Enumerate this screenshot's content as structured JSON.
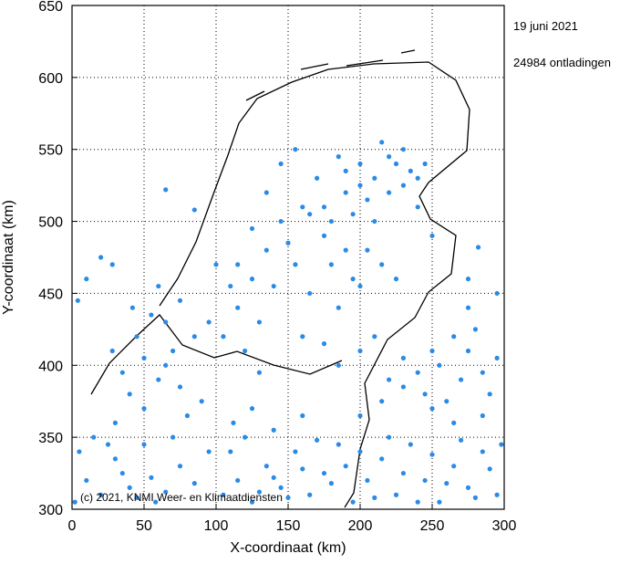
{
  "chart_data": {
    "type": "scatter",
    "date": "19 juni 2021",
    "count_label": "24984 ontladingen",
    "copyright": "(c) 2021, KNMI Weer- en Klimaatdiensten",
    "xlabel": "X-coordinaat (km)",
    "ylabel": "Y-coordinaat (km)",
    "xlim": [
      0,
      300
    ],
    "ylim": [
      300,
      650
    ],
    "xticks": [
      0,
      50,
      100,
      150,
      200,
      250,
      300
    ],
    "yticks": [
      300,
      350,
      400,
      450,
      500,
      550,
      600,
      650
    ],
    "grid": true,
    "color": "#2a8be6",
    "x": [
      105,
      115,
      125,
      135,
      145,
      155,
      165,
      175,
      185,
      195,
      205,
      215,
      225,
      235,
      245,
      255,
      265,
      275,
      285,
      295,
      110,
      120,
      130,
      140,
      150,
      160,
      170,
      180,
      190,
      200,
      210,
      220,
      230,
      240,
      250,
      260,
      270,
      280,
      290,
      298,
      112,
      125,
      140,
      160,
      200,
      215,
      230,
      250,
      265,
      285,
      2,
      10,
      20,
      30,
      40,
      50,
      58,
      5,
      15,
      35,
      45,
      25,
      55,
      65,
      75,
      85,
      95,
      70,
      30,
      40,
      50,
      60,
      70,
      45,
      55,
      65,
      75,
      35,
      80,
      90,
      85,
      65,
      50,
      28,
      42,
      75,
      60,
      95,
      105,
      115,
      125,
      135,
      145,
      155,
      165,
      175,
      185,
      120,
      130,
      140,
      150,
      160,
      170,
      180,
      110,
      100,
      125,
      135,
      145,
      155,
      165,
      190,
      195,
      175,
      185,
      160,
      130,
      115,
      180,
      190,
      200,
      210,
      220,
      230,
      240,
      185,
      195,
      205,
      215,
      225,
      235,
      200,
      210,
      175,
      190,
      220,
      230,
      240,
      245,
      205,
      215,
      225,
      200,
      245,
      255,
      265,
      275,
      285,
      295,
      270,
      280,
      290,
      260,
      250,
      275,
      240,
      230,
      220,
      210,
      200,
      10,
      20,
      28,
      65,
      85,
      250,
      282,
      295,
      275,
      4
    ],
    "values": [
      310,
      320,
      305,
      330,
      315,
      340,
      310,
      325,
      345,
      305,
      320,
      335,
      310,
      345,
      320,
      305,
      330,
      315,
      340,
      310,
      340,
      350,
      312,
      322,
      308,
      328,
      348,
      318,
      330,
      340,
      308,
      350,
      325,
      305,
      338,
      318,
      348,
      308,
      328,
      345,
      360,
      370,
      355,
      365,
      365,
      375,
      385,
      370,
      360,
      365,
      305,
      320,
      310,
      335,
      315,
      345,
      305,
      340,
      350,
      325,
      308,
      345,
      322,
      312,
      330,
      318,
      340,
      350,
      360,
      380,
      370,
      390,
      410,
      420,
      435,
      400,
      385,
      395,
      365,
      375,
      420,
      430,
      405,
      410,
      440,
      445,
      455,
      430,
      420,
      440,
      460,
      480,
      500,
      470,
      450,
      490,
      440,
      410,
      430,
      455,
      485,
      510,
      530,
      470,
      455,
      470,
      495,
      520,
      540,
      550,
      505,
      480,
      460,
      415,
      400,
      420,
      395,
      470,
      500,
      520,
      540,
      530,
      545,
      525,
      510,
      545,
      505,
      515,
      555,
      540,
      535,
      525,
      500,
      510,
      535,
      520,
      550,
      530,
      540,
      480,
      470,
      460,
      455,
      380,
      400,
      420,
      410,
      395,
      405,
      390,
      425,
      380,
      375,
      410,
      440,
      395,
      405,
      390,
      420,
      410,
      460,
      475,
      470,
      522,
      508,
      490,
      482,
      450,
      460,
      445
    ]
  }
}
